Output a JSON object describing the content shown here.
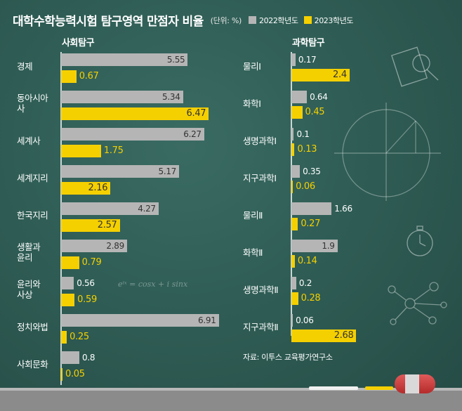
{
  "title": "대학수학능력시험 탐구영역 만점자 비율",
  "unit": "(단위: %)",
  "legend": [
    {
      "label": "2022학년도",
      "color": "#b5b5b5"
    },
    {
      "label": "2023학년도",
      "color": "#f5d000"
    }
  ],
  "source": "자료: 이투스 교육평가연구소",
  "formula": "eⁱˣ = cosx + i sinx",
  "chart_data": [
    {
      "type": "bar",
      "title": "사회탐구",
      "orientation": "horizontal",
      "categories": [
        "경제",
        "동아시아사",
        "세계사",
        "세계지리",
        "한국지리",
        "생활과 윤리",
        "윤리와 사상",
        "정치와법",
        "사회문화"
      ],
      "category_lines": [
        [
          "경제"
        ],
        [
          "동아시아",
          "사"
        ],
        [
          "세계사"
        ],
        [
          "세계지리"
        ],
        [
          "한국지리"
        ],
        [
          "생활과",
          "윤리"
        ],
        [
          "윤리와",
          "사상"
        ],
        [
          "정치와법"
        ],
        [
          "사회문화"
        ]
      ],
      "series": [
        {
          "name": "2022학년도",
          "values": [
            5.55,
            5.34,
            6.27,
            5.17,
            4.27,
            2.89,
            0.56,
            6.91,
            0.8
          ]
        },
        {
          "name": "2023학년도",
          "values": [
            0.67,
            6.47,
            1.75,
            2.16,
            2.57,
            0.79,
            0.59,
            0.25,
            0.05
          ]
        }
      ],
      "value_labels": [
        [
          "5.55",
          "5.34",
          "6.27",
          "5.17",
          "4.27",
          "2.89",
          "0.56",
          "6.91",
          "0.8"
        ],
        [
          "0.67",
          "6.47",
          "1.75",
          "2.16",
          "2.57",
          "0.79",
          "0.59",
          "0.25",
          "0.05"
        ]
      ]
    },
    {
      "type": "bar",
      "title": "과학탐구",
      "orientation": "horizontal",
      "categories": [
        "물리Ⅰ",
        "화학Ⅰ",
        "생명과학Ⅰ",
        "지구과학Ⅰ",
        "물리Ⅱ",
        "화학Ⅱ",
        "생명과학Ⅱ",
        "지구과학Ⅱ"
      ],
      "category_lines": [
        [
          "물리Ⅰ"
        ],
        [
          "화학Ⅰ"
        ],
        [
          "생명과학Ⅰ"
        ],
        [
          "지구과학Ⅰ"
        ],
        [
          "물리Ⅱ"
        ],
        [
          "화학Ⅱ"
        ],
        [
          "생명과학Ⅱ"
        ],
        [
          "지구과학Ⅱ"
        ]
      ],
      "series": [
        {
          "name": "2022학년도",
          "values": [
            0.17,
            0.64,
            0.1,
            0.35,
            1.66,
            1.9,
            0.2,
            0.06
          ]
        },
        {
          "name": "2023학년도",
          "values": [
            2.4,
            0.45,
            0.13,
            0.06,
            0.27,
            0.14,
            0.28,
            2.68
          ]
        }
      ],
      "value_labels": [
        [
          "0.17",
          "0.64",
          "0.1",
          "0.35",
          "1.66",
          "1.9",
          "0.2",
          "0.06"
        ],
        [
          "2.4",
          "0.45",
          "0.13",
          "0.06",
          "0.27",
          "0.14",
          "0.28",
          "2.68"
        ]
      ]
    }
  ]
}
